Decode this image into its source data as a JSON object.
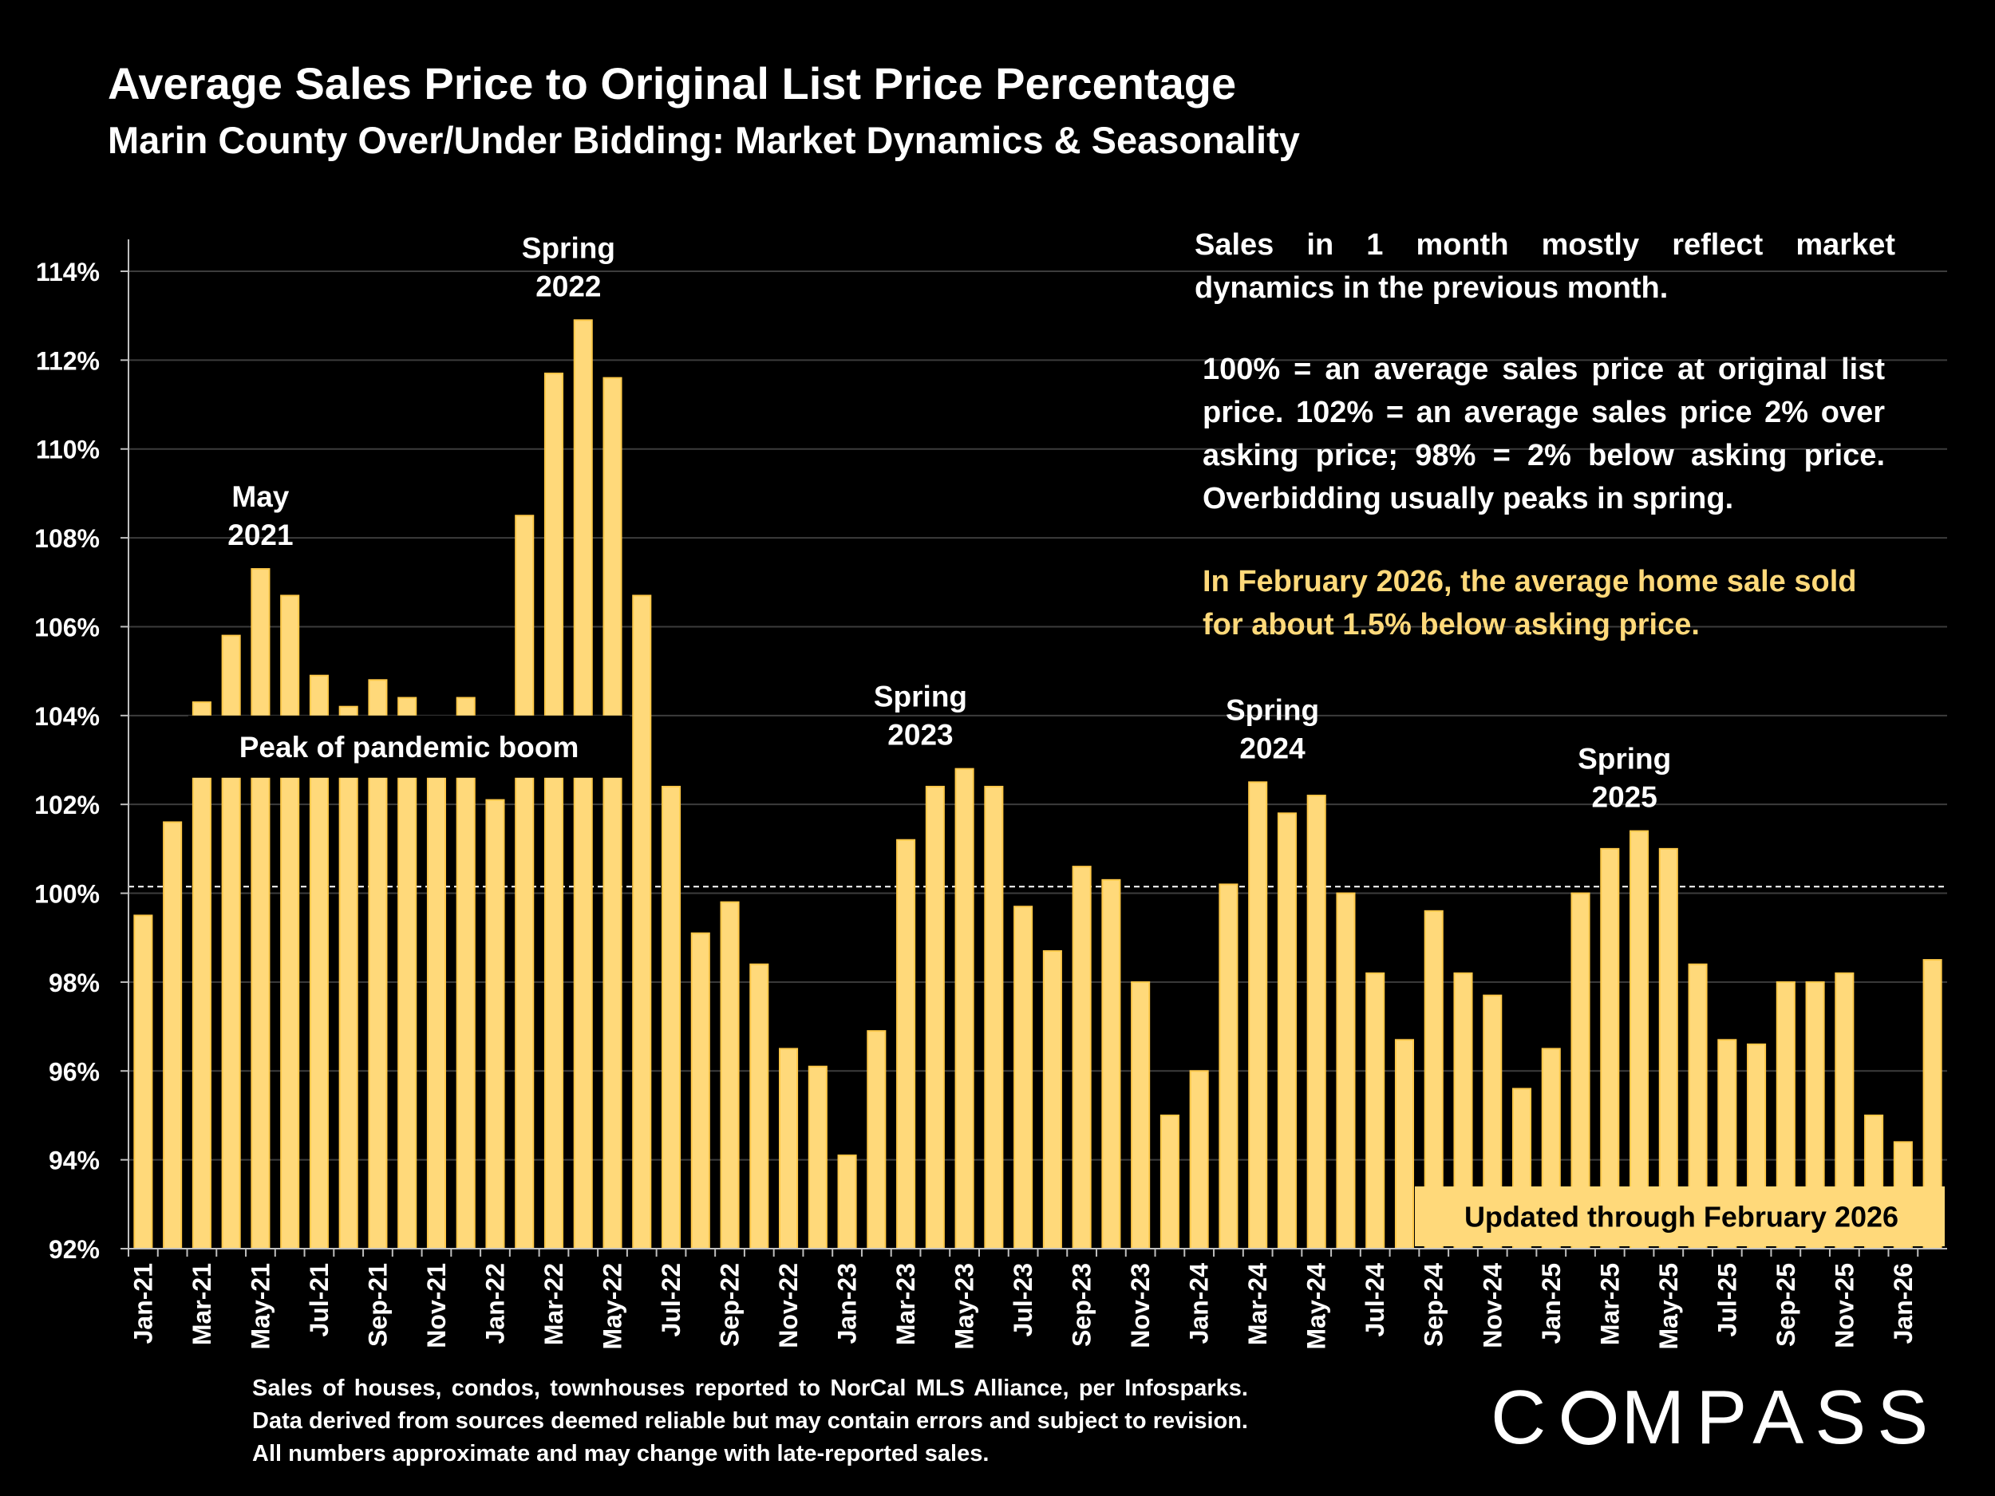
{
  "header": {
    "title": "Average Sales Price to Original List Price Percentage",
    "subtitle": "Marin County Over/Under Bidding: Market Dynamics & Seasonality"
  },
  "notes": {
    "dynamics": "Sales in 1 month mostly reflect market dynamics in the previous month.",
    "definition": "100% = an average sales price at original list price. 102% = an average sales price 2% over asking price; 98% = 2% below asking price. Overbidding usually peaks in spring.",
    "highlight": "In February 2026, the average home sale sold for about 1.5% below asking price."
  },
  "footer": "Sales of houses, condos, townhouses reported to NorCal MLS Alliance, per Infosparks. Data derived from sources deemed reliable but may contain errors and subject to revision. All numbers approximate and may change with late-reported sales.",
  "brand": {
    "logo_before": "C",
    "logo_after": "MPASS"
  },
  "colors": {
    "bar": "#ffd97a",
    "bar_edge": "#ffc94a",
    "background": "#000000",
    "callout": "#ffd97a"
  },
  "chart_data": {
    "type": "bar",
    "ylim": [
      92,
      114
    ],
    "yticks": [
      92,
      94,
      96,
      98,
      100,
      102,
      104,
      106,
      108,
      110,
      112,
      114
    ],
    "ytick_labels": [
      "92%",
      "94%",
      "96%",
      "98%",
      "100%",
      "102%",
      "104%",
      "106%",
      "108%",
      "110%",
      "112%",
      "114%"
    ],
    "grid": true,
    "reference_line": 100.15,
    "categories": [
      "Jan-21",
      "Feb-21",
      "Mar-21",
      "Apr-21",
      "May-21",
      "Jun-21",
      "Jul-21",
      "Aug-21",
      "Sep-21",
      "Oct-21",
      "Nov-21",
      "Dec-21",
      "Jan-22",
      "Feb-22",
      "Mar-22",
      "Apr-22",
      "May-22",
      "Jun-22",
      "Jul-22",
      "Aug-22",
      "Sep-22",
      "Oct-22",
      "Nov-22",
      "Dec-22",
      "Jan-23",
      "Feb-23",
      "Mar-23",
      "Apr-23",
      "May-23",
      "Jun-23",
      "Jul-23",
      "Aug-23",
      "Sep-23",
      "Oct-23",
      "Nov-23",
      "Dec-23",
      "Jan-24",
      "Feb-24",
      "Mar-24",
      "Apr-24",
      "May-24",
      "Jun-24",
      "Jul-24",
      "Aug-24",
      "Sep-24",
      "Oct-24",
      "Nov-24",
      "Dec-24",
      "Jan-25",
      "Feb-25",
      "Mar-25",
      "Apr-25",
      "May-25",
      "Jun-25",
      "Jul-25",
      "Aug-25",
      "Sep-25",
      "Oct-25",
      "Nov-25",
      "Dec-25",
      "Jan-26",
      "Feb-26"
    ],
    "tick_labels_shown": [
      "Jan-21",
      "Mar-21",
      "May-21",
      "Jul-21",
      "Sep-21",
      "Nov-21",
      "Jan-22",
      "Mar-22",
      "May-22",
      "Jul-22",
      "Sep-22",
      "Nov-22",
      "Jan-23",
      "Mar-23",
      "May-23",
      "Jul-23",
      "Sep-23",
      "Nov-23",
      "Jan-24",
      "Mar-24",
      "May-24",
      "Jul-24",
      "Sep-24",
      "Nov-24",
      "Jan-25",
      "Mar-25",
      "May-25",
      "Jul-25",
      "Sep-25",
      "Nov-25",
      "Jan-26"
    ],
    "values": [
      99.5,
      101.6,
      104.3,
      105.8,
      107.3,
      106.7,
      104.9,
      104.2,
      104.8,
      104.4,
      102.7,
      104.4,
      102.1,
      108.5,
      111.7,
      112.9,
      111.6,
      106.7,
      102.4,
      99.1,
      99.8,
      98.4,
      96.5,
      96.1,
      94.1,
      96.9,
      101.2,
      102.4,
      102.8,
      102.4,
      99.7,
      98.7,
      100.6,
      100.3,
      98.0,
      95.0,
      96.0,
      100.2,
      102.5,
      101.8,
      102.2,
      100.0,
      98.2,
      96.7,
      99.6,
      98.2,
      97.7,
      95.6,
      96.5,
      100.0,
      101.0,
      101.4,
      101.0,
      98.4,
      96.7,
      96.6,
      98.0,
      98.0,
      98.2,
      95.0,
      94.4,
      98.5
    ],
    "annotations": [
      {
        "line1": "May",
        "line2": "2021",
        "category": "May-21"
      },
      {
        "line1": "Spring",
        "line2": "2022",
        "category": "Apr-22"
      },
      {
        "line1": "Spring",
        "line2": "2023",
        "category": "Apr-23"
      },
      {
        "line1": "Spring",
        "line2": "2024",
        "category": "Apr-24"
      },
      {
        "line1": "Spring",
        "line2": "2025",
        "category": "Apr-25"
      }
    ],
    "callouts": {
      "peak_label": "Peak of pandemic boom",
      "updated_label": "Updated through February 2026"
    }
  }
}
